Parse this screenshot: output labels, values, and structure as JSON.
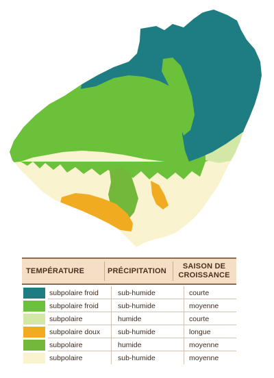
{
  "legend": {
    "headers": {
      "temperature": "TEMPÉRATURE",
      "precipitation": "PRÉCIPITATION",
      "saison": "SAISON DE\nCROISSANCE"
    },
    "rows": [
      {
        "color": "#1e7d82",
        "temperature": "subpolaire froid",
        "precipitation": "sub-humide",
        "saison": "courte"
      },
      {
        "color": "#6cc13a",
        "temperature": "subpolaire froid",
        "precipitation": "sub-humide",
        "saison": "moyenne"
      },
      {
        "color": "#d3e7a7",
        "temperature": "subpolaire",
        "precipitation": "humide",
        "saison": "courte"
      },
      {
        "color": "#f1ab20",
        "temperature": "subpolaire doux",
        "precipitation": "sub-humide",
        "saison": "longue"
      },
      {
        "color": "#73b83a",
        "temperature": "subpolaire",
        "precipitation": "humide",
        "saison": "moyenne"
      },
      {
        "color": "#f9f3cf",
        "temperature": "subpolaire",
        "precipitation": "sub-humide",
        "saison": "moyenne"
      }
    ]
  },
  "map": {
    "zone_colors": {
      "teal": "#1e7d82",
      "green": "#6cc13a",
      "pale_green": "#d3e7a7",
      "orange": "#f1ab20",
      "mid_green": "#73b83a",
      "cream": "#f9f3cf"
    }
  }
}
